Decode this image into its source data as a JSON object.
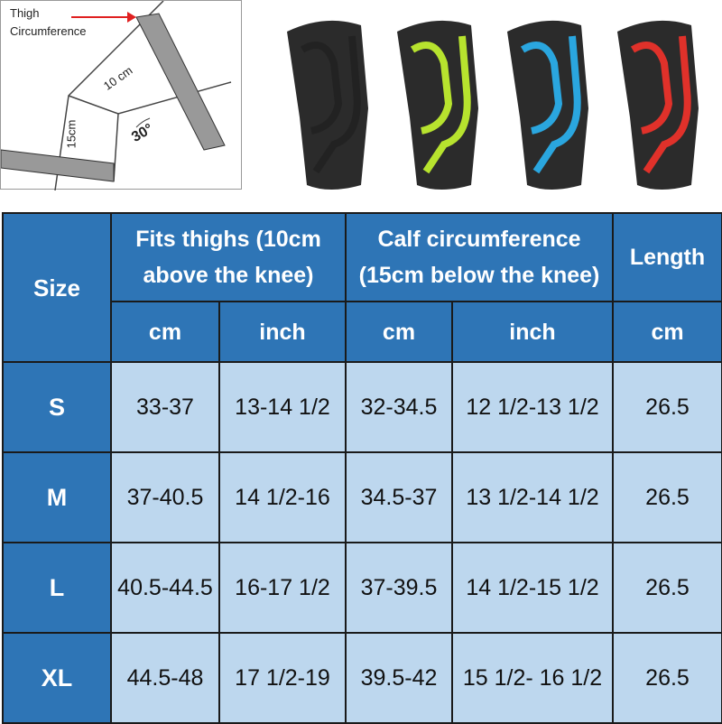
{
  "diagram": {
    "thigh_label_line1": "Thigh",
    "thigh_label_line2": "Circumference",
    "above_distance": "10 cm",
    "below_distance": "15cm",
    "angle": "30°"
  },
  "products": {
    "stripe_colors": [
      "#222222",
      "#b7e32e",
      "#2aa6df",
      "#e0312a"
    ]
  },
  "colors": {
    "header": "#2e75b6",
    "body": "#bdd7ee"
  },
  "table": {
    "headers": {
      "size": "Size",
      "thigh": "Fits thighs (10cm above the knee)",
      "calf": "Calf circumference (15cm below the knee)",
      "length": "Length"
    },
    "units": [
      "cm",
      "inch",
      "cm",
      "inch",
      "cm"
    ],
    "rows": [
      {
        "size": "S",
        "thigh_cm": "33-37",
        "thigh_in": "13-14 1/2",
        "calf_cm": "32-34.5",
        "calf_in": "12 1/2-13 1/2",
        "length_cm": "26.5"
      },
      {
        "size": "M",
        "thigh_cm": "37-40.5",
        "thigh_in": "14 1/2-16",
        "calf_cm": "34.5-37",
        "calf_in": "13 1/2-14 1/2",
        "length_cm": "26.5"
      },
      {
        "size": "L",
        "thigh_cm": "40.5-44.5",
        "thigh_in": "16-17 1/2",
        "calf_cm": "37-39.5",
        "calf_in": "14 1/2-15 1/2",
        "length_cm": "26.5"
      },
      {
        "size": "XL",
        "thigh_cm": "44.5-48",
        "thigh_in": "17 1/2-19",
        "calf_cm": "39.5-42",
        "calf_in": "15 1/2- 16 1/2",
        "length_cm": "26.5"
      }
    ]
  }
}
